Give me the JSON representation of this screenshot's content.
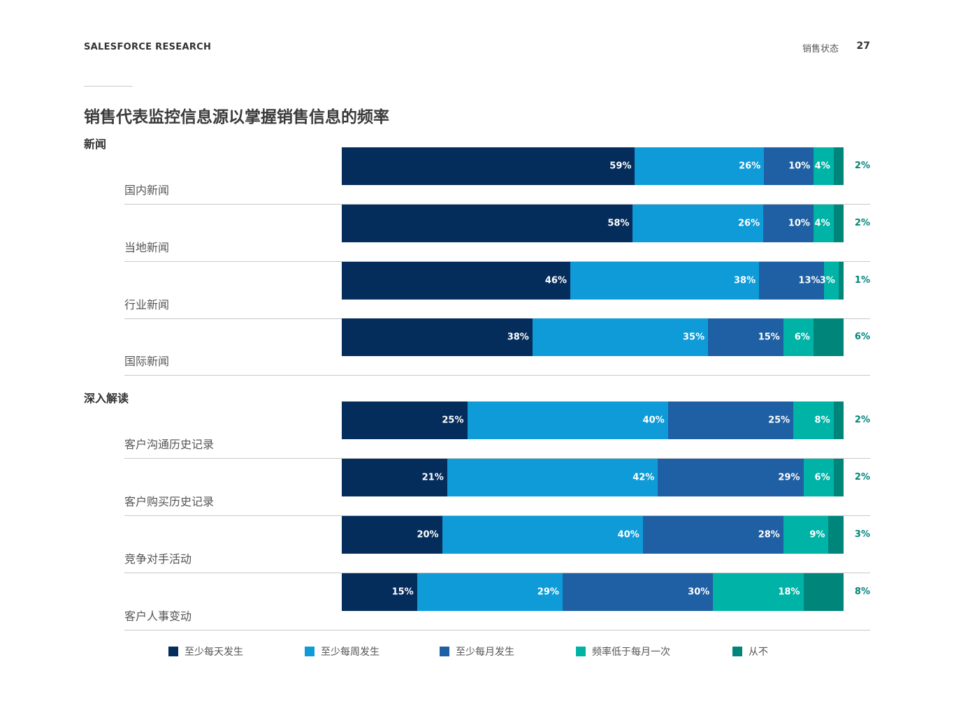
{
  "header": {
    "brand": "SALESFORCE RESEARCH",
    "section": "销售状态",
    "page": "27"
  },
  "chart_data": {
    "type": "bar",
    "orientation": "horizontal-stacked-100",
    "title": "销售代表监控信息源以掌握销售信息的频率",
    "unit": "%",
    "series": [
      {
        "name": "至少每天发生",
        "color": "#052d5c"
      },
      {
        "name": "至少每周发生",
        "color": "#0e9bd8"
      },
      {
        "name": "至少每月发生",
        "color": "#1f5fa3"
      },
      {
        "name": "频率低于每月一次",
        "color": "#00b3a7"
      },
      {
        "name": "从不",
        "color": "#00857a"
      }
    ],
    "groups": [
      {
        "label": "新闻",
        "rows": [
          {
            "label": "国内新闻",
            "values": [
              59,
              26,
              10,
              4,
              2
            ]
          },
          {
            "label": "当地新闻",
            "values": [
              58,
              26,
              10,
              4,
              2
            ]
          },
          {
            "label": "行业新闻",
            "values": [
              46,
              38,
              13,
              3,
              1
            ]
          },
          {
            "label": "国际新闻",
            "values": [
              38,
              35,
              15,
              6,
              6
            ]
          }
        ]
      },
      {
        "label": "深入解读",
        "rows": [
          {
            "label": "客户沟通历史记录",
            "values": [
              25,
              40,
              25,
              8,
              2
            ]
          },
          {
            "label": "客户购买历史记录",
            "values": [
              21,
              42,
              29,
              6,
              2
            ]
          },
          {
            "label": "竞争对手活动",
            "values": [
              20,
              40,
              28,
              9,
              3
            ]
          },
          {
            "label": "客户人事变动",
            "values": [
              15,
              29,
              30,
              18,
              8
            ]
          }
        ]
      }
    ]
  }
}
